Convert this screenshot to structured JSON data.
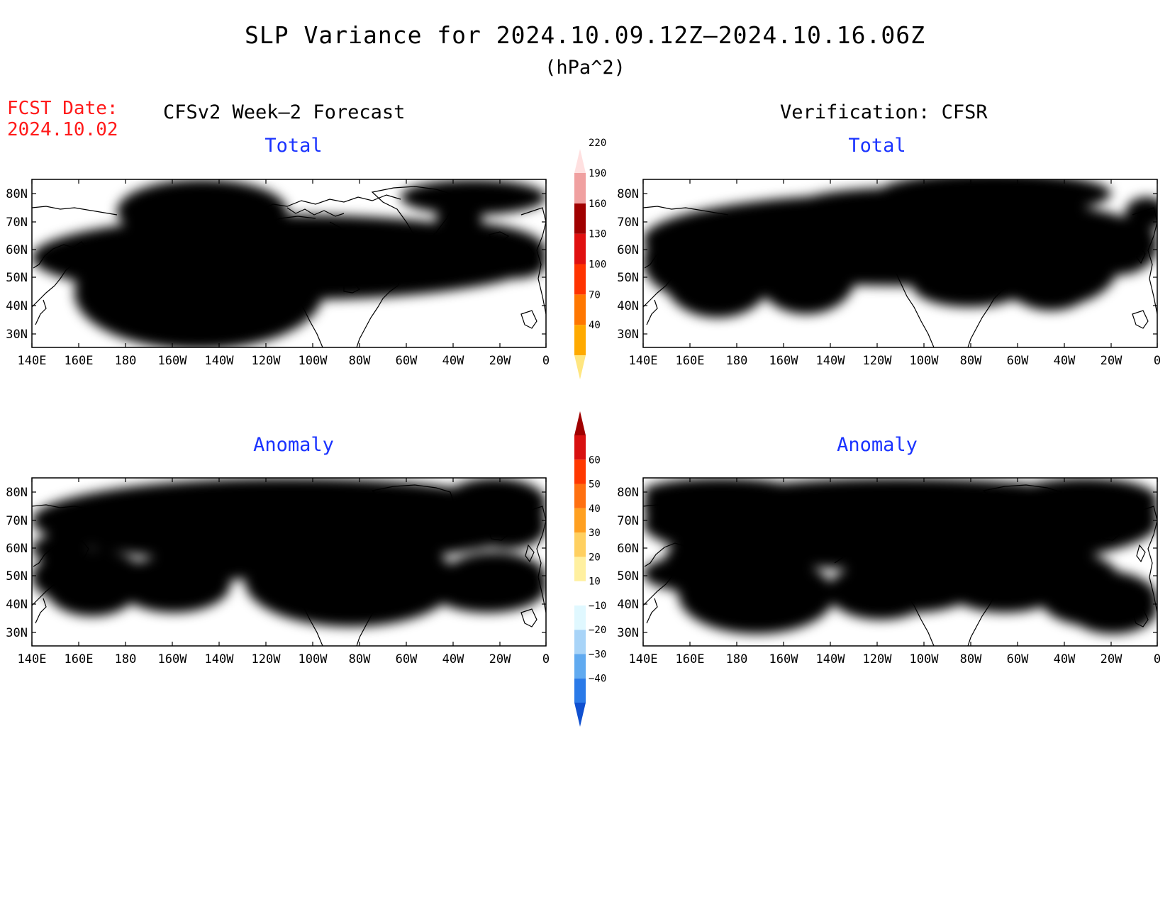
{
  "title": "SLP Variance for 2024.10.09.12Z–2024.10.16.06Z",
  "units": "(hPa^2)",
  "fcst_date_label": "FCST Date:",
  "fcst_date": "2024.10.02",
  "left_column_title": "CFSv2 Week–2 Forecast",
  "right_column_title": "Verification: CFSR",
  "panels": [
    {
      "id": "fcst-total",
      "title": "Total"
    },
    {
      "id": "verif-total",
      "title": "Total"
    },
    {
      "id": "fcst-anom",
      "title": "Anomaly"
    },
    {
      "id": "verif-anom",
      "title": "Anomaly"
    }
  ],
  "lat_labels": [
    "80N",
    "70N",
    "60N",
    "50N",
    "40N",
    "30N"
  ],
  "lon_labels": [
    "140E",
    "160E",
    "180",
    "160W",
    "140W",
    "120W",
    "100W",
    "80W",
    "60W",
    "40W",
    "20W",
    "0"
  ],
  "total_colorbar": {
    "labels": [
      "40",
      "70",
      "100",
      "130",
      "160",
      "190",
      "220"
    ],
    "colors": [
      "#ffe680",
      "#ffaa00",
      "#ff7700",
      "#ff3300",
      "#e01010",
      "#a00000",
      "#f0a0a0",
      "#ffe0e0"
    ]
  },
  "anomaly_colorbar": {
    "labels": [
      "−40",
      "−30",
      "−20",
      "−10",
      "10",
      "20",
      "30",
      "40",
      "50",
      "60"
    ],
    "colors": [
      "#1050d0",
      "#2a7ae8",
      "#60aaf0",
      "#a8d4f8",
      "#e0f8ff",
      "#ffffff",
      "#fff0a0",
      "#ffd060",
      "#ffa020",
      "#ff7010",
      "#ff3800",
      "#d81010",
      "#a00000"
    ]
  }
}
